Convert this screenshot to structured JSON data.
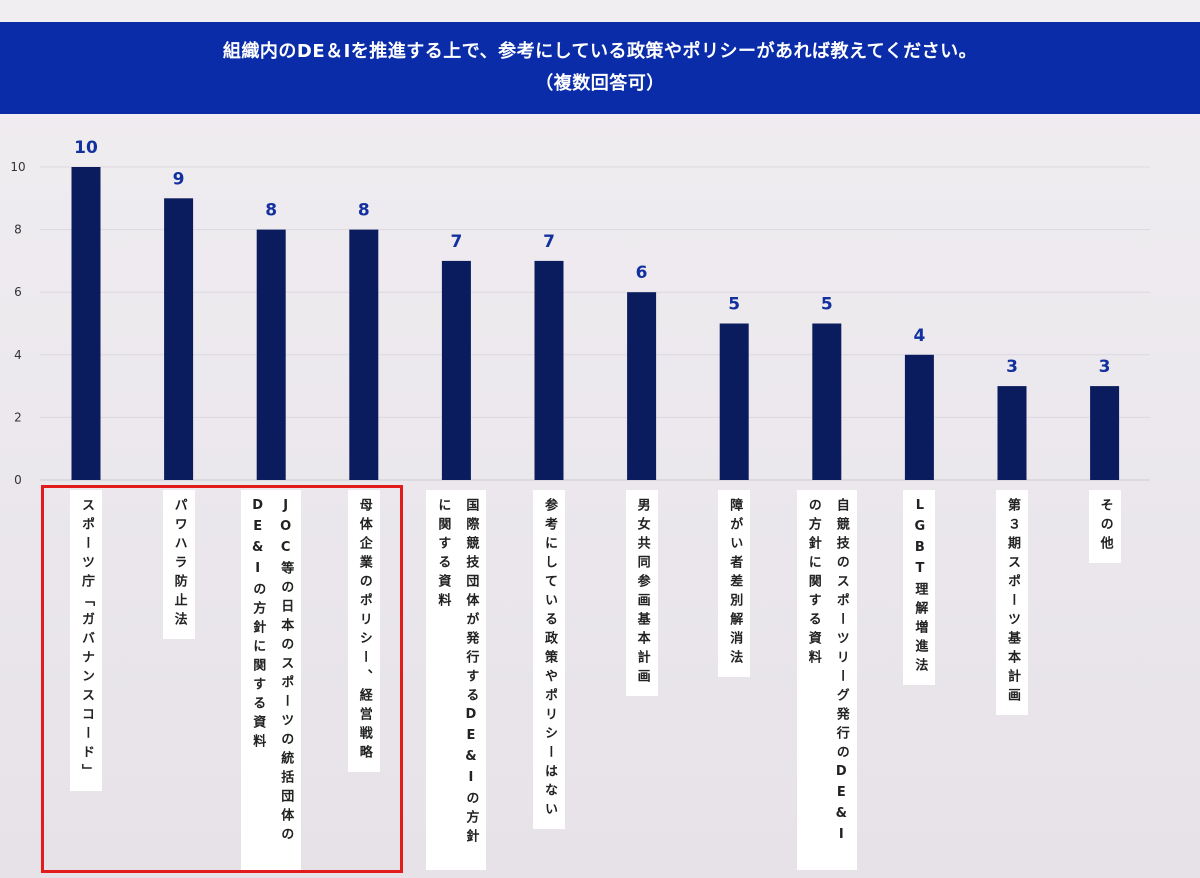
{
  "chart_data": {
    "type": "bar",
    "title": [
      "組織内のDE＆Iを推進する上で、参考にしている政策やポリシーがあれば教えてください。",
      "（複数回答可）"
    ],
    "categories": [
      "スポーツ庁「ガバナンスコード」",
      "パワハラ防止法",
      "JOC等の日本のスポーツの統括団体のDE&Iの方針に関する資料",
      "母体企業のポリシー、経営戦略",
      "国際競技団体が発行するDE&Iの方針に関する資料",
      "参考にしている政策やポリシーはない",
      "男女共同参画基本計画",
      "障がい者差別解消法",
      "自競技のスポーツリーグ発行のDE&Iの方針に関する資料",
      "LGBT理解増進法",
      "第３期スポーツ基本計画",
      "その他"
    ],
    "values": [
      10,
      9,
      8,
      8,
      7,
      7,
      6,
      5,
      5,
      4,
      3,
      3
    ],
    "ylim": [
      0,
      10
    ],
    "yticks": [
      0,
      2,
      4,
      6,
      8,
      10
    ],
    "grid": true,
    "bar_color": "#0b1c5e",
    "value_label_color": "#12309e",
    "highlight_color": "#e21c1c",
    "title_bar_color": "#0a2ca8"
  }
}
